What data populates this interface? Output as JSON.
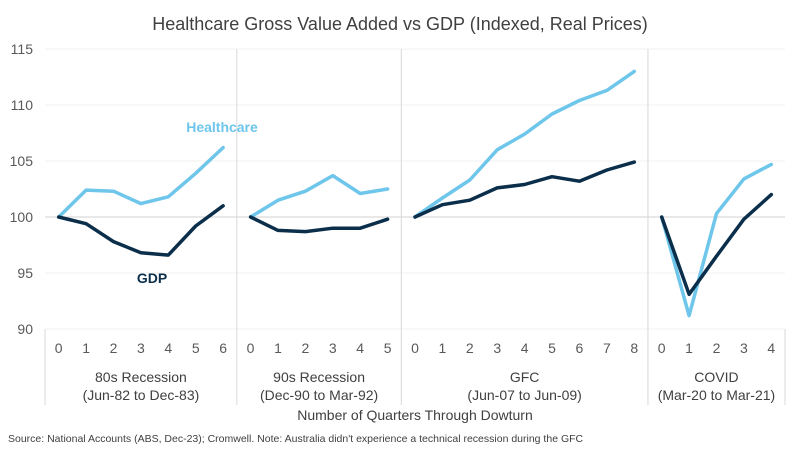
{
  "chart_data": {
    "type": "line",
    "title": "Healthcare Gross Value Added vs GDP (Indexed, Real Prices)",
    "xlabel": "Number of Quarters Through Dowturn",
    "ylabel": "",
    "ylim": [
      90,
      115
    ],
    "yticks": [
      90,
      95,
      100,
      105,
      110,
      115
    ],
    "grid": true,
    "legend": "inline-annotations",
    "groups": [
      {
        "name": "80s Recession",
        "period": "(Jun-82 to Dec-83)",
        "x": [
          0,
          1,
          2,
          3,
          4,
          5,
          6
        ],
        "series": [
          {
            "name": "Healthcare",
            "values": [
              100,
              102.4,
              102.3,
              101.2,
              101.8,
              103.9,
              106.2
            ]
          },
          {
            "name": "GDP",
            "values": [
              100,
              99.4,
              97.8,
              96.8,
              96.6,
              99.2,
              101.0
            ]
          }
        ]
      },
      {
        "name": "90s Recession",
        "period": "(Dec-90 to Mar-92)",
        "x": [
          0,
          1,
          2,
          3,
          4,
          5
        ],
        "series": [
          {
            "name": "Healthcare",
            "values": [
              100,
              101.5,
              102.3,
              103.7,
              102.1,
              102.5
            ]
          },
          {
            "name": "GDP",
            "values": [
              100,
              98.8,
              98.7,
              99.0,
              99.0,
              99.8
            ]
          }
        ]
      },
      {
        "name": "GFC",
        "period": "(Jun-07 to Jun-09)",
        "x": [
          0,
          1,
          2,
          3,
          4,
          5,
          6,
          7,
          8
        ],
        "series": [
          {
            "name": "Healthcare",
            "values": [
              100,
              101.7,
              103.3,
              106.0,
              107.4,
              109.2,
              110.4,
              111.3,
              113.0
            ]
          },
          {
            "name": "GDP",
            "values": [
              100,
              101.1,
              101.5,
              102.6,
              102.9,
              103.6,
              103.2,
              104.2,
              104.9
            ]
          }
        ]
      },
      {
        "name": "COVID",
        "period": "(Mar-20 to Mar-21)",
        "x": [
          0,
          1,
          2,
          3,
          4
        ],
        "series": [
          {
            "name": "Healthcare",
            "values": [
              100,
              91.2,
              100.3,
              103.4,
              104.7
            ]
          },
          {
            "name": "GDP",
            "values": [
              100,
              93.1,
              96.5,
              99.8,
              102.0
            ]
          }
        ]
      }
    ],
    "series_colors": {
      "Healthcare": "#6EC6EB",
      "GDP": "#0B2E4A"
    },
    "annotations": [
      {
        "text": "Healthcare",
        "series": "Healthcare",
        "group": "80s Recession"
      },
      {
        "text": "GDP",
        "series": "GDP",
        "group": "80s Recession"
      }
    ]
  },
  "source_note": "Source: National Accounts (ABS, Dec-23); Cromwell. Note: Australia didn't experience a technical recession during the GFC"
}
